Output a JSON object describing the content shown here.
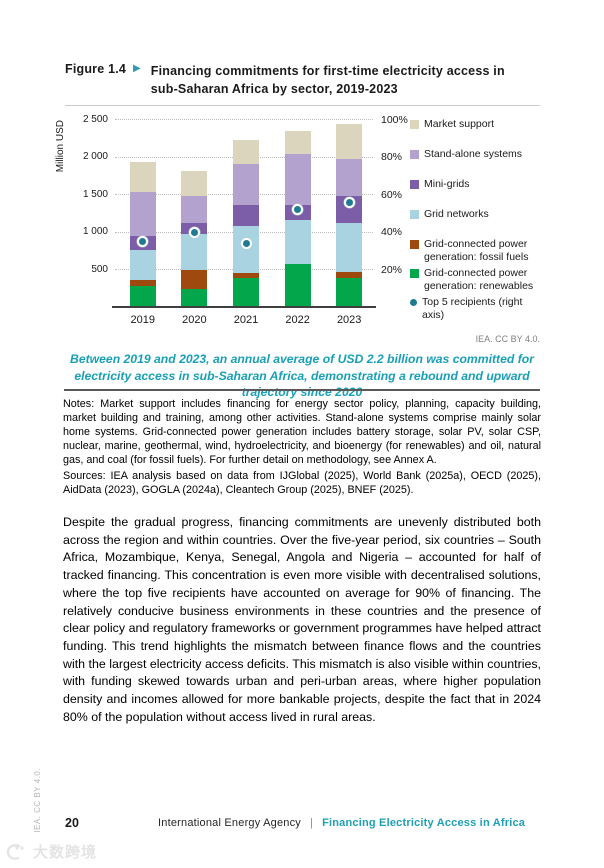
{
  "figure": {
    "label": "Figure 1.4",
    "arrow": "▶",
    "title": "Financing commitments for first-time electricity access in sub-Saharan Africa by sector, 2019-2023"
  },
  "chart_data": {
    "type": "bar",
    "subtype": "stacked-bars-with-right-axis-dots",
    "title": "Financing commitments for first-time electricity access in sub-Saharan Africa by sector, 2019-2023",
    "categories": [
      "2019",
      "2020",
      "2021",
      "2022",
      "2023"
    ],
    "ylabel": "Million USD",
    "left_axis": {
      "label": "Million USD",
      "max": 2500,
      "ticks": [
        "2 500",
        "2 000",
        "1 500",
        "1 000",
        "500"
      ]
    },
    "right_axis": {
      "max": 100,
      "ticks": [
        "100%",
        "80%",
        "60%",
        "40%",
        "20%"
      ]
    },
    "grid": "dotted horizontal at 500 / 20% intervals",
    "legend_position": "right",
    "series": [
      {
        "name": "Grid-connected power generation: renewables",
        "color": "#03A64A",
        "values": [
          280,
          240,
          385,
          575,
          385
        ]
      },
      {
        "name": "Grid-connected power generation: fossil fuels",
        "color": "#9E4A0E",
        "values": [
          75,
          260,
          70,
          0,
          85
        ]
      },
      {
        "name": "Grid networks",
        "color": "#A9D3E1",
        "values": [
          405,
          475,
          620,
          590,
          650
        ]
      },
      {
        "name": "Mini-grids",
        "color": "#7C5EA8",
        "values": [
          190,
          145,
          290,
          190,
          365
        ]
      },
      {
        "name": "Stand-alone systems",
        "color": "#B4A2CE",
        "values": [
          590,
          365,
          545,
          685,
          490
        ]
      },
      {
        "name": "Market support",
        "color": "#DBD5BE",
        "values": [
          400,
          325,
          310,
          310,
          465
        ]
      }
    ],
    "dot_series": {
      "name": "Top 5 recipients (right axis)",
      "color": "#1F7A94",
      "values_pct": [
        35,
        40,
        34,
        52,
        56
      ]
    },
    "legend": [
      {
        "label": "Market support",
        "color": "#DBD5BE",
        "shape": "square",
        "compact": false
      },
      {
        "label": "Stand-alone systems",
        "color": "#B4A2CE",
        "shape": "square",
        "compact": false
      },
      {
        "label": "Mini-grids",
        "color": "#7C5EA8",
        "shape": "square",
        "compact": false
      },
      {
        "label": "Grid networks",
        "color": "#A9D3E1",
        "shape": "square",
        "compact": false
      },
      {
        "label": "Grid-connected power generation: fossil fuels",
        "color": "#9E4A0E",
        "shape": "square",
        "compact": true
      },
      {
        "label": "Grid-connected power generation: renewables",
        "color": "#03A64A",
        "shape": "square",
        "compact": true
      },
      {
        "label": "Top 5 recipients (right axis)",
        "color": "#1F7A94",
        "shape": "dot",
        "compact": true
      }
    ]
  },
  "chart_credit": "IEA. CC BY 4.0.",
  "callout": "Between 2019 and 2023, an annual average of USD 2.2 billion was committed for electricity access in sub-Saharan Africa, demonstrating a rebound and upward trajectory since 2020",
  "notes": "Notes: Market support includes financing for energy sector policy, planning, capacity building, market building and training, among other activities. Stand-alone systems comprise mainly solar home systems. Grid-connected power generation includes battery storage, solar PV, solar CSP, nuclear, marine, geothermal, wind, hydroelectricity, and bioenergy (for renewables) and oil, natural gas, and coal (for fossil fuels). For further detail on methodology, see Annex A.",
  "sources": "Sources: IEA analysis based on data from IJGlobal (2025), World Bank (2025a), OECD (2025), AidData (2023), GOGLA (2024a), Cleantech Group (2025), BNEF (2025).",
  "body": "Despite the gradual progress, financing commitments are unevenly distributed both across the region and within countries. Over the five-year period, six countries – South Africa, Mozambique, Kenya, Senegal, Angola and Nigeria – accounted for half of tracked financing. This concentration is even more visible with decentralised solutions, where the top five recipients have accounted on average for 90% of financing. The relatively conducive business environments in these countries and the presence of clear policy and regulatory frameworks or government programmes have helped attract funding. This trend highlights the mismatch between finance flows and the countries with the largest electricity access deficits. This mismatch is also visible within countries, with funding skewed towards urban and peri-urban areas, where higher population density and incomes allowed for more bankable projects, despite the fact that in 2024 80% of the population without access lived in rural areas.",
  "footer": {
    "page_number": "20",
    "agency": "International Energy Agency",
    "divider": "|",
    "report": "Financing Electricity Access in Africa"
  },
  "side_credit": "IEA. CC BY 4.0.",
  "watermark_text": "大数跨境",
  "colors": {
    "accent_teal": "#189FB5",
    "axis": "#3F3F3F",
    "gridline": "#BDBDBD",
    "credit_gray": "#7F7F7F"
  }
}
